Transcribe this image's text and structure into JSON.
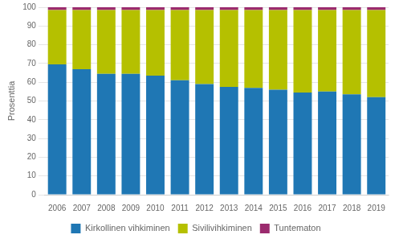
{
  "chart_data": {
    "type": "bar",
    "stacked": true,
    "ylabel": "Prosenttia",
    "categories": [
      "2006",
      "2007",
      "2008",
      "2009",
      "2010",
      "2011",
      "2012",
      "2013",
      "2014",
      "2015",
      "2016",
      "2017",
      "2018",
      "2019"
    ],
    "series": [
      {
        "name": "Kirkollinen vihkiminen",
        "color": "#1f77b4",
        "values": [
          69.5,
          67.0,
          64.5,
          64.5,
          63.5,
          61.0,
          59.0,
          57.5,
          57.0,
          56.0,
          54.5,
          55.0,
          53.5,
          52.0
        ]
      },
      {
        "name": "Sivilivihkiminen",
        "color": "#b5c000",
        "values": [
          29.0,
          31.5,
          34.0,
          34.0,
          35.0,
          37.5,
          39.5,
          41.0,
          41.5,
          42.5,
          44.0,
          43.5,
          45.0,
          46.5
        ]
      },
      {
        "name": "Tuntematon",
        "color": "#9b2b6e",
        "values": [
          1.5,
          1.5,
          1.5,
          1.5,
          1.5,
          1.5,
          1.5,
          1.5,
          1.5,
          1.5,
          1.5,
          1.5,
          1.5,
          1.5
        ]
      }
    ],
    "ylim": [
      0,
      100
    ],
    "yticks": [
      0,
      10,
      20,
      30,
      40,
      50,
      60,
      70,
      80,
      90,
      100
    ],
    "grid": true,
    "legend": "bottom"
  }
}
